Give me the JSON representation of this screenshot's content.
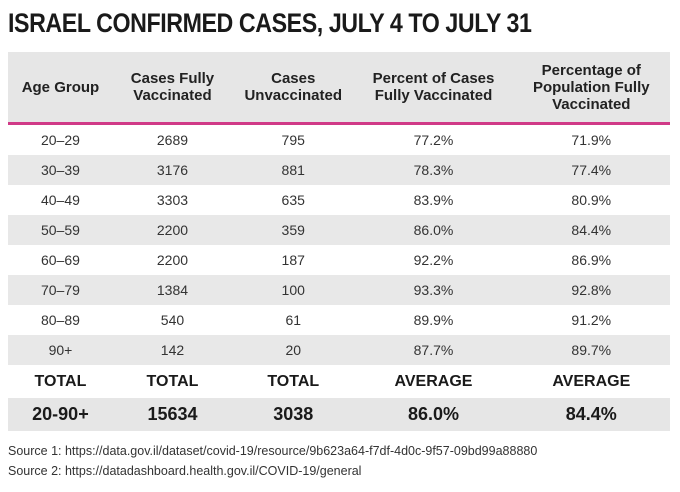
{
  "title": "ISRAEL CONFIRMED CASES, JULY 4 TO JULY 31",
  "chart_data": {
    "type": "table",
    "columns": [
      "Age Group",
      "Cases Fully Vaccinated",
      "Cases Unvaccinated",
      "Percent of Cases Fully Vaccinated",
      "Percentage of Population Fully Vaccinated"
    ],
    "rows": [
      [
        "20–29",
        "2689",
        "795",
        "77.2%",
        "71.9%"
      ],
      [
        "30–39",
        "3176",
        "881",
        "78.3%",
        "77.4%"
      ],
      [
        "40–49",
        "3303",
        "635",
        "83.9%",
        "80.9%"
      ],
      [
        "50–59",
        "2200",
        "359",
        "86.0%",
        "84.4%"
      ],
      [
        "60–69",
        "2200",
        "187",
        "92.2%",
        "86.9%"
      ],
      [
        "70–79",
        "1384",
        "100",
        "93.3%",
        "92.8%"
      ],
      [
        "80–89",
        "540",
        "61",
        "89.9%",
        "91.2%"
      ],
      [
        "90+",
        "142",
        "20",
        "87.7%",
        "89.7%"
      ]
    ],
    "summary_labels": [
      "TOTAL",
      "TOTAL",
      "TOTAL",
      "AVERAGE",
      "AVERAGE"
    ],
    "summary_values": [
      "20-90+",
      "15634",
      "3038",
      "86.0%",
      "84.4%"
    ]
  },
  "sources": [
    "Source 1: https://data.gov.il/dataset/covid-19/resource/9b623a64-f7df-4d0c-9f57-09bd99a88880",
    "Source 2: https://datadashboard.health.gov.il/COVID-19/general"
  ],
  "colors": {
    "accent": "#d03a87",
    "band": "#e8e8e8"
  }
}
